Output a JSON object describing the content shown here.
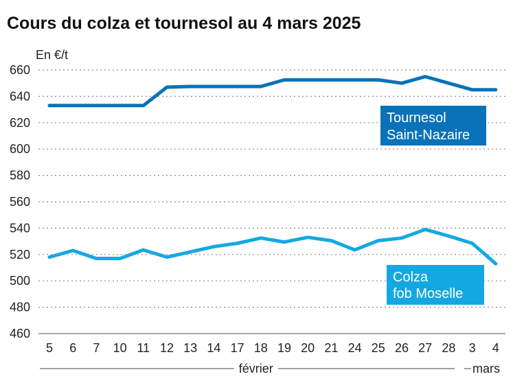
{
  "chart_data": {
    "type": "line",
    "title": "Cours du colza et tournesol au 4 mars 2025",
    "unit_label": "En €/t",
    "ylim": [
      460,
      660
    ],
    "yticks": [
      460,
      480,
      500,
      520,
      540,
      560,
      580,
      600,
      620,
      640,
      660
    ],
    "grid": true,
    "categories": [
      "5",
      "6",
      "7",
      "10",
      "11",
      "12",
      "13",
      "14",
      "17",
      "18",
      "19",
      "20",
      "21",
      "24",
      "25",
      "26",
      "27",
      "28",
      "3",
      "4"
    ],
    "months": [
      {
        "label": "février",
        "from_index": 0,
        "to_index": 17
      },
      {
        "label": "mars",
        "from_index": 18,
        "to_index": 19
      }
    ],
    "series": [
      {
        "name": "Tournesol Saint-Nazaire",
        "legend_lines": [
          "Tournesol",
          "Saint-Nazaire"
        ],
        "color": "#0a72b8",
        "values": [
          633,
          633,
          633,
          633,
          633,
          647,
          647.5,
          647.5,
          647.5,
          647.5,
          652.5,
          652.5,
          652.5,
          652.5,
          652.5,
          650,
          655,
          650,
          645,
          645
        ]
      },
      {
        "name": "Colza fob Moselle",
        "legend_lines": [
          "Colza",
          "fob Moselle"
        ],
        "color": "#14a8e3",
        "values": [
          518,
          523,
          517,
          517,
          523.5,
          518,
          522,
          526,
          528.5,
          532.5,
          529.5,
          533,
          530.5,
          523.5,
          530.5,
          532.5,
          539,
          534,
          528.5,
          513
        ]
      }
    ]
  }
}
